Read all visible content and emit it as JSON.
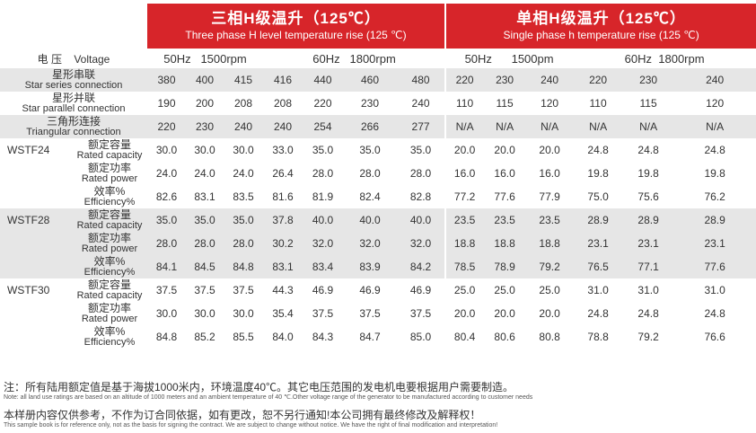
{
  "header": {
    "three_phase_zh": "三相H级温升（125℃）",
    "three_phase_en": "Three phase H level temperature rise (125 ℃)",
    "single_phase_zh": "单相H级温升（125℃）",
    "single_phase_en": "Single phase h temperature rise (125 ℃)"
  },
  "voltage_label": {
    "zh": "电  压",
    "en": "Voltage"
  },
  "freq": [
    "50Hz",
    "1500rpm",
    "60Hz",
    "1800rpm",
    "50Hz",
    "1500pm",
    "60Hz",
    "1800rpm"
  ],
  "connections": [
    {
      "zh": "星形串联",
      "en": "Star series connection",
      "values": [
        "380",
        "400",
        "415",
        "416",
        "440",
        "460",
        "480",
        "220",
        "230",
        "240",
        "220",
        "230",
        "240"
      ]
    },
    {
      "zh": "星形并联",
      "en": "Star parallel connection",
      "values": [
        "190",
        "200",
        "208",
        "208",
        "220",
        "230",
        "240",
        "110",
        "115",
        "120",
        "110",
        "115",
        "120"
      ]
    },
    {
      "zh": "三角形连接",
      "en": "Triangular connection",
      "values": [
        "220",
        "230",
        "240",
        "240",
        "254",
        "266",
        "277",
        "N/A",
        "N/A",
        "N/A",
        "N/A",
        "N/A",
        "N/A"
      ]
    }
  ],
  "models": [
    {
      "name": "WSTF24",
      "rows": [
        {
          "zh": "额定容量",
          "en": "Rated capacity",
          "values": [
            "30.0",
            "30.0",
            "30.0",
            "33.0",
            "35.0",
            "35.0",
            "35.0",
            "20.0",
            "20.0",
            "20.0",
            "24.8",
            "24.8",
            "24.8"
          ]
        },
        {
          "zh": "额定功率",
          "en": "Rated power",
          "values": [
            "24.0",
            "24.0",
            "24.0",
            "26.4",
            "28.0",
            "28.0",
            "28.0",
            "16.0",
            "16.0",
            "16.0",
            "19.8",
            "19.8",
            "19.8"
          ]
        },
        {
          "zh": "效率%",
          "en": "Efficiency%",
          "values": [
            "82.6",
            "83.1",
            "83.5",
            "81.6",
            "81.9",
            "82.4",
            "82.8",
            "77.2",
            "77.6",
            "77.9",
            "75.0",
            "75.6",
            "76.2"
          ]
        }
      ]
    },
    {
      "name": "WSTF28",
      "rows": [
        {
          "zh": "额定容量",
          "en": "Rated capacity",
          "values": [
            "35.0",
            "35.0",
            "35.0",
            "37.8",
            "40.0",
            "40.0",
            "40.0",
            "23.5",
            "23.5",
            "23.5",
            "28.9",
            "28.9",
            "28.9"
          ]
        },
        {
          "zh": "额定功率",
          "en": "Rated power",
          "values": [
            "28.0",
            "28.0",
            "28.0",
            "30.2",
            "32.0",
            "32.0",
            "32.0",
            "18.8",
            "18.8",
            "18.8",
            "23.1",
            "23.1",
            "23.1"
          ]
        },
        {
          "zh": "效率%",
          "en": "Efficiency%",
          "values": [
            "84.1",
            "84.5",
            "84.8",
            "83.1",
            "83.4",
            "83.9",
            "84.2",
            "78.5",
            "78.9",
            "79.2",
            "76.5",
            "77.1",
            "77.6"
          ]
        }
      ]
    },
    {
      "name": "WSTF30",
      "rows": [
        {
          "zh": "额定容量",
          "en": "Rated capacity",
          "values": [
            "37.5",
            "37.5",
            "37.5",
            "44.3",
            "46.9",
            "46.9",
            "46.9",
            "25.0",
            "25.0",
            "25.0",
            "31.0",
            "31.0",
            "31.0"
          ]
        },
        {
          "zh": "额定功率",
          "en": "Rated power",
          "values": [
            "30.0",
            "30.0",
            "30.0",
            "35.4",
            "37.5",
            "37.5",
            "37.5",
            "20.0",
            "20.0",
            "20.0",
            "24.8",
            "24.8",
            "24.8"
          ]
        },
        {
          "zh": "效率%",
          "en": "Efficiency%",
          "values": [
            "84.8",
            "85.2",
            "85.5",
            "84.0",
            "84.3",
            "84.7",
            "85.0",
            "80.4",
            "80.6",
            "80.8",
            "78.8",
            "79.2",
            "76.6"
          ]
        }
      ]
    }
  ],
  "notes": {
    "note1_zh": "注：所有陆用额定值是基于海拔1000米内，环境温度40℃。其它电压范围的发电机电要根据用户需要制造。",
    "note1_en": "Note: all land use ratings are based on an altitude of 1000 meters and an ambient temperature of 40 ℃.Other voltage range of the generator to be manufactured according to customer needs",
    "note2_zh": "本样册内容仅供参考，不作为订合同依据，如有更改，恕不另行通知!本公司拥有最终修改及解释权！",
    "note2_en": "This sample book is for reference only, not as the basis for signing the contract. We are subject to change without notice. We have the right of final modification and interpretation!"
  }
}
